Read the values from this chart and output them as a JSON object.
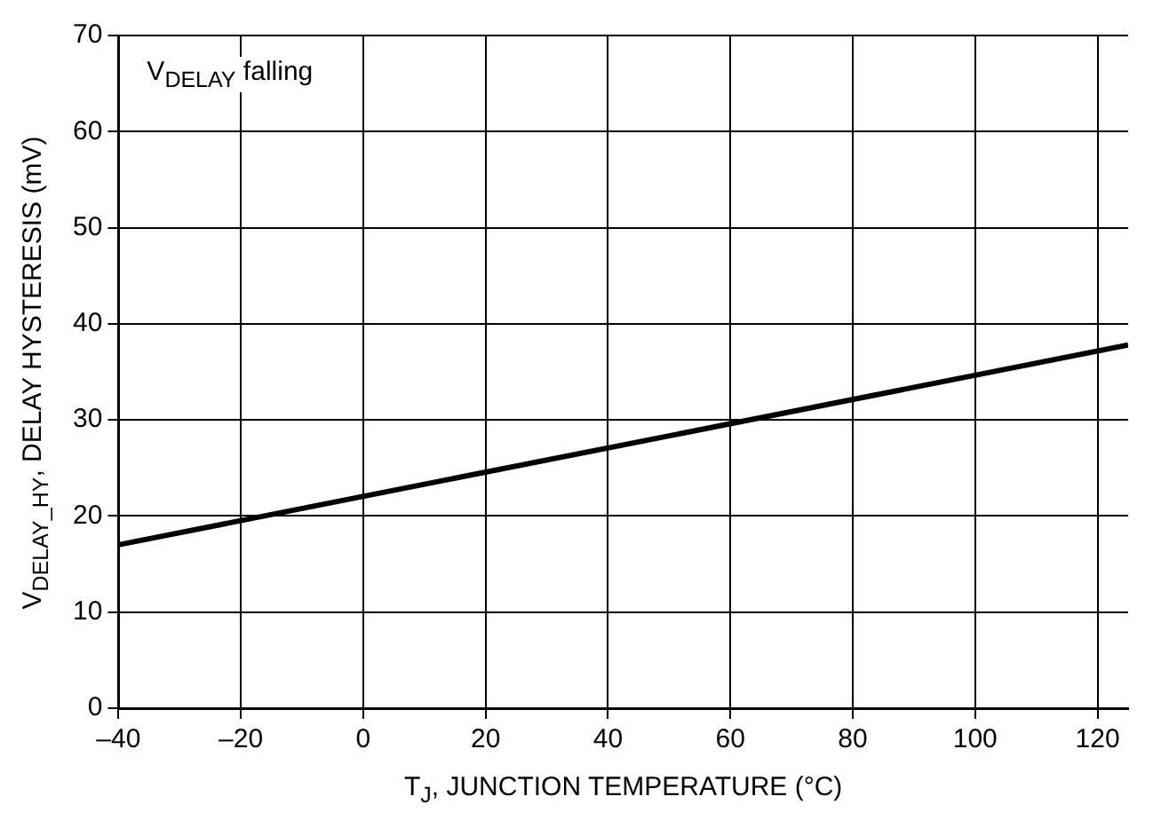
{
  "chart_data": {
    "type": "line",
    "xlabel": "T$_{J}$, JUNCTION TEMPERATURE (°C)",
    "ylabel": "V$_{DELAY_HY}$, DELAY HYSTERESIS (mV)",
    "annotations": [
      "V$_{DELAY}$ falling"
    ],
    "x": [
      -40,
      125
    ],
    "series": [
      {
        "color": "#000000",
        "values": [
          17,
          37.8
        ]
      }
    ],
    "xlim": [
      -40,
      125
    ],
    "ylim": [
      0,
      70
    ],
    "xticks": [
      {
        "value": -40,
        "label": "–40"
      },
      {
        "value": -20,
        "label": "–20"
      },
      0,
      20,
      40,
      60,
      80,
      100,
      120
    ],
    "yticks": [
      0,
      10,
      20,
      30,
      40,
      50,
      60,
      70
    ],
    "grid": true
  }
}
